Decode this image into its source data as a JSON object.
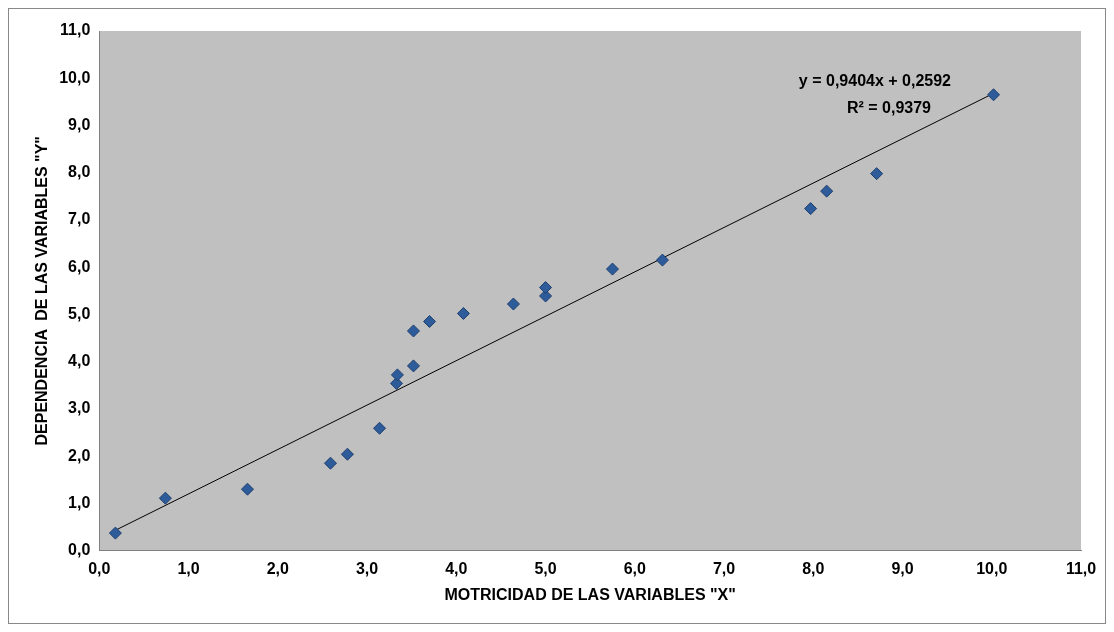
{
  "chart_data": {
    "type": "scatter",
    "xlabel": "MOTRICIDAD DE LAS VARIABLES \"X\"",
    "ylabel": "DEPENDENCIA  DE LAS VARIABLES \"Y\"",
    "annotations": [
      "y = 0,9404x + 0,2592",
      "R² = 0,9379"
    ],
    "marker": "diamond",
    "grid": false,
    "legend": false,
    "xlim": [
      0,
      11
    ],
    "ylim": [
      0,
      11
    ],
    "xticks": [
      {
        "value": 0,
        "label": "0,0"
      },
      {
        "value": 1,
        "label": "1,0"
      },
      {
        "value": 2,
        "label": "2,0"
      },
      {
        "value": 3,
        "label": "3,0"
      },
      {
        "value": 4,
        "label": "4,0"
      },
      {
        "value": 5,
        "label": "5,0"
      },
      {
        "value": 6,
        "label": "6,0"
      },
      {
        "value": 7,
        "label": "7,0"
      },
      {
        "value": 8,
        "label": "8,0"
      },
      {
        "value": 9,
        "label": "9,0"
      },
      {
        "value": 10,
        "label": "10,0"
      },
      {
        "value": 11,
        "label": "11,0"
      }
    ],
    "yticks": [
      {
        "value": 0,
        "label": "0,0"
      },
      {
        "value": 1,
        "label": "1,0"
      },
      {
        "value": 2,
        "label": "2,0"
      },
      {
        "value": 3,
        "label": "3,0"
      },
      {
        "value": 4,
        "label": "4,0"
      },
      {
        "value": 5,
        "label": "5,0"
      },
      {
        "value": 6,
        "label": "6,0"
      },
      {
        "value": 7,
        "label": "7,0"
      },
      {
        "value": 8,
        "label": "8,0"
      },
      {
        "value": 9,
        "label": "9,0"
      },
      {
        "value": 10,
        "label": "10,0"
      },
      {
        "value": 11,
        "label": "11,0"
      }
    ],
    "series": [
      {
        "type": "scatter",
        "color": "#2e5c9a",
        "x": [
          0.18,
          0.74,
          1.66,
          2.59,
          2.78,
          3.14,
          3.33,
          3.34,
          3.52,
          3.52,
          3.7,
          4.08,
          4.64,
          5.0,
          5.0,
          5.75,
          6.31,
          7.97,
          8.15,
          8.71,
          10.02
        ],
        "values": [
          0.37,
          1.11,
          1.3,
          1.85,
          2.04,
          2.59,
          3.54,
          3.72,
          3.91,
          4.65,
          4.85,
          5.02,
          5.22,
          5.39,
          5.57,
          5.96,
          6.15,
          7.24,
          7.61,
          7.98,
          9.65
        ]
      },
      {
        "type": "line",
        "color": "#000000",
        "marker": "none",
        "x": [
          0.18,
          10.02
        ],
        "values": [
          0.43,
          9.68
        ]
      }
    ]
  }
}
